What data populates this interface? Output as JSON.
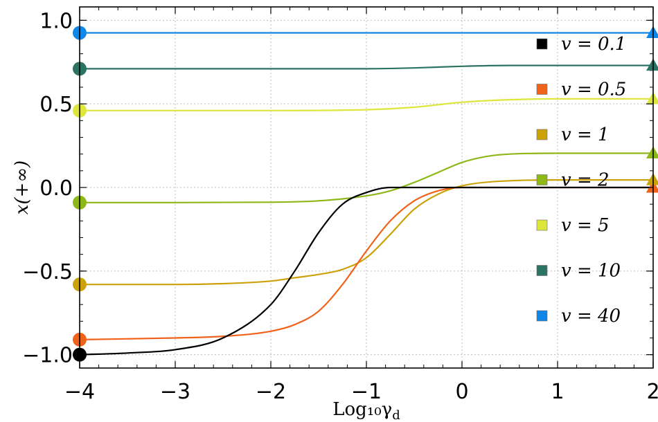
{
  "chart_data": {
    "type": "line",
    "title": "",
    "xlabel": "Log₁₀γ",
    "xlabel_sub": "d",
    "ylabel": "x(+∞)",
    "xlim": [
      -4,
      2
    ],
    "ylim": [
      -1.08,
      1.08
    ],
    "grid": true,
    "legend_position": "right",
    "x_ticks": [
      -4,
      -3,
      -2,
      -1,
      0,
      1,
      2
    ],
    "x_tick_labels": [
      "−4",
      "−3",
      "−2",
      "−1",
      "0",
      "1",
      "2"
    ],
    "y_ticks": [
      -1.0,
      -0.5,
      0.0,
      0.5,
      1.0
    ],
    "y_tick_labels": [
      "−1.0",
      "−0.5",
      "0.0",
      "0.5",
      "1.0"
    ],
    "series": [
      {
        "name": "v = 0.1",
        "color": "#000000",
        "x": [
          -4,
          -3.5,
          -3,
          -2.5,
          -2,
          -1.75,
          -1.5,
          -1.25,
          -1,
          -0.75,
          -0.5,
          0,
          1,
          2
        ],
        "y": [
          -1.0,
          -0.99,
          -0.97,
          -0.9,
          -0.7,
          -0.5,
          -0.27,
          -0.1,
          -0.03,
          0.0,
          0.0,
          0.0,
          0.0,
          0.0
        ]
      },
      {
        "name": "v = 0.5",
        "color": "#f06219",
        "x": [
          -4,
          -3,
          -2.5,
          -2,
          -1.75,
          -1.5,
          -1.25,
          -1,
          -0.75,
          -0.5,
          -0.25,
          0,
          0.5,
          1,
          2
        ],
        "y": [
          -0.91,
          -0.9,
          -0.89,
          -0.86,
          -0.82,
          -0.74,
          -0.58,
          -0.38,
          -0.2,
          -0.08,
          -0.02,
          0.0,
          0.0,
          0.0,
          0.0
        ]
      },
      {
        "name": "v = 1",
        "color": "#cca20a",
        "x": [
          -4,
          -3,
          -2.5,
          -2,
          -1.75,
          -1.5,
          -1.25,
          -1,
          -0.75,
          -0.5,
          -0.25,
          0,
          0.5,
          1,
          2
        ],
        "y": [
          -0.58,
          -0.58,
          -0.575,
          -0.56,
          -0.54,
          -0.52,
          -0.49,
          -0.42,
          -0.28,
          -0.13,
          -0.04,
          0.01,
          0.04,
          0.045,
          0.045
        ]
      },
      {
        "name": "v = 2",
        "color": "#8db818",
        "x": [
          -4,
          -3,
          -2,
          -1.5,
          -1,
          -0.75,
          -0.5,
          -0.25,
          0,
          0.25,
          0.5,
          1,
          2
        ],
        "y": [
          -0.09,
          -0.09,
          -0.088,
          -0.08,
          -0.05,
          -0.02,
          0.03,
          0.09,
          0.15,
          0.185,
          0.2,
          0.205,
          0.205
        ]
      },
      {
        "name": "v = 5",
        "color": "#dde63c",
        "x": [
          -4,
          -3,
          -2,
          -1,
          -0.5,
          0,
          0.5,
          1,
          2
        ],
        "y": [
          0.46,
          0.46,
          0.46,
          0.465,
          0.48,
          0.51,
          0.525,
          0.53,
          0.53
        ]
      },
      {
        "name": "v = 10",
        "color": "#2b7362",
        "x": [
          -4,
          -3,
          -2,
          -1,
          -0.5,
          0,
          0.5,
          1,
          2
        ],
        "y": [
          0.71,
          0.71,
          0.71,
          0.71,
          0.715,
          0.725,
          0.73,
          0.73,
          0.73
        ]
      },
      {
        "name": "v = 40",
        "color": "#0f86e8",
        "x": [
          -4,
          -3,
          -2,
          -1,
          0,
          1,
          2
        ],
        "y": [
          0.925,
          0.925,
          0.925,
          0.925,
          0.925,
          0.925,
          0.925
        ]
      }
    ],
    "legend": [
      {
        "label": "v = 0.1",
        "color": "#000000"
      },
      {
        "label": "v = 0.5",
        "color": "#f06219"
      },
      {
        "label": "v = 1",
        "color": "#cca20a"
      },
      {
        "label": "v = 2",
        "color": "#8db818"
      },
      {
        "label": "v = 5",
        "color": "#dde63c"
      },
      {
        "label": "v = 10",
        "color": "#2b7362"
      },
      {
        "label": "v = 40",
        "color": "#0f86e8"
      }
    ]
  }
}
